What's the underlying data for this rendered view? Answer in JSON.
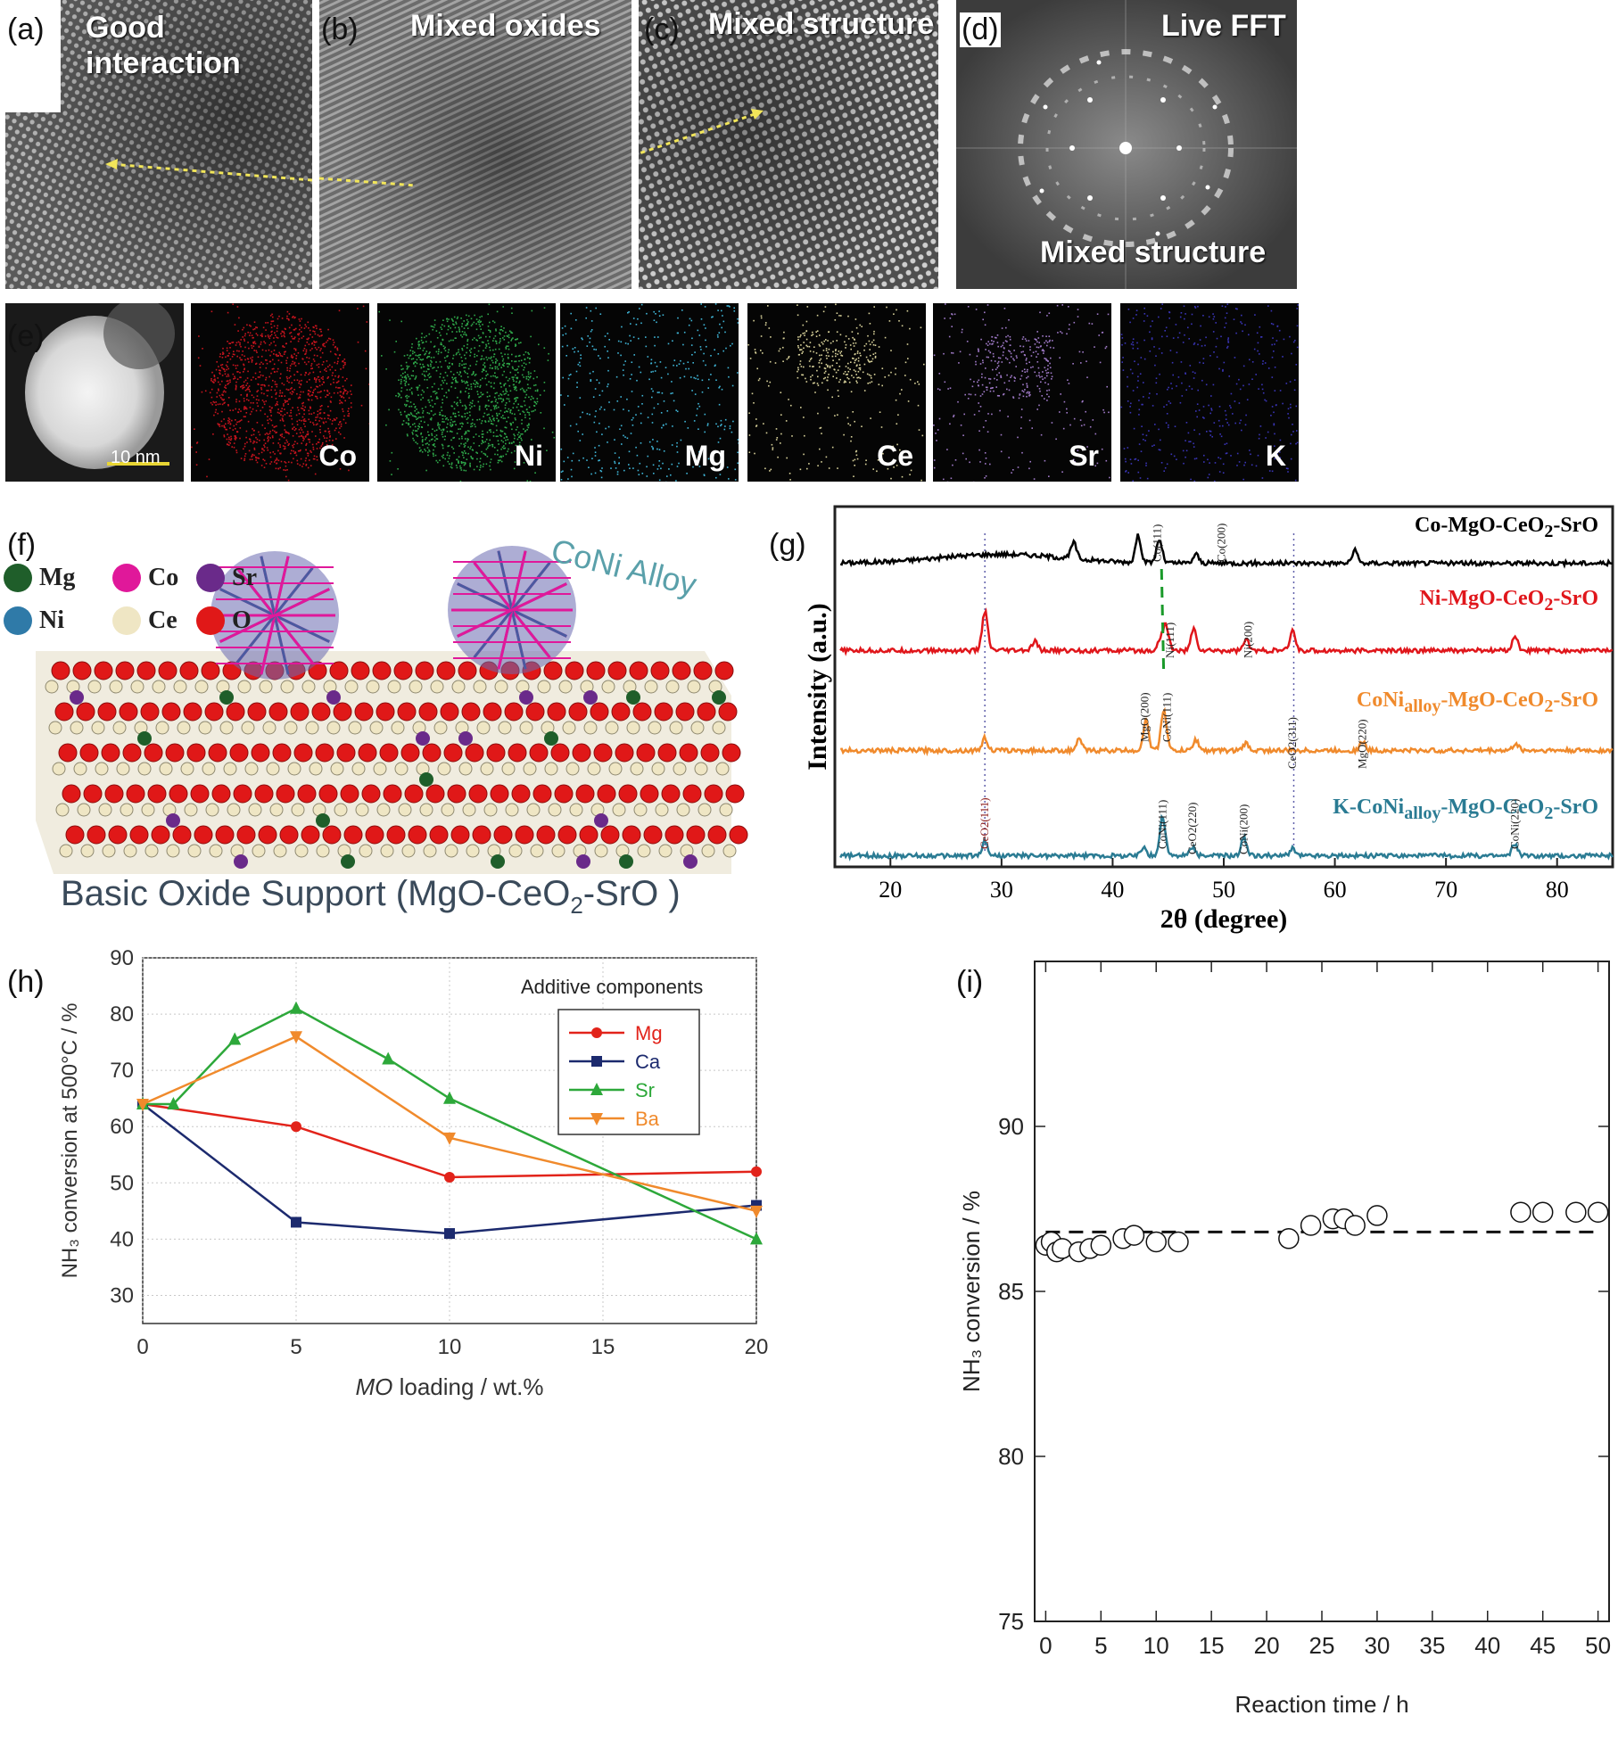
{
  "panel_labels": {
    "a": "(a)",
    "b": "(b)",
    "c": "(c)",
    "d": "(d)",
    "e": "(e)",
    "f": "(f)",
    "g": "(g)",
    "h": "(h)",
    "i": "(i)"
  },
  "tem": {
    "a_text_1": "Good",
    "a_text_2": "interaction",
    "b_text": "Mixed oxides",
    "c_text": "Mixed structure",
    "d_title": "Live FFT",
    "d_bottom": "Mixed structure"
  },
  "eds": {
    "scalebar": "10 nm",
    "maps": [
      {
        "element": "Co",
        "color": "#c8141e"
      },
      {
        "element": "Ni",
        "color": "#2fa84a"
      },
      {
        "element": "Mg",
        "color": "#3fb6d8"
      },
      {
        "element": "Ce",
        "color": "#d8d19a"
      },
      {
        "element": "Sr",
        "color": "#a07ac8"
      },
      {
        "element": "K",
        "color": "#3a35b8"
      }
    ]
  },
  "structure": {
    "legend": [
      {
        "symbol": "Mg",
        "color": "#1f5e2a"
      },
      {
        "symbol": "Co",
        "color": "#e0189a"
      },
      {
        "symbol": "Sr",
        "color": "#6a2a8a"
      },
      {
        "symbol": "Ni",
        "color": "#2f7aa8"
      },
      {
        "symbol": "Ce",
        "color": "#efe6c4"
      },
      {
        "symbol": "O",
        "color": "#e01818"
      }
    ],
    "alloy_label": "CoNi Alloy",
    "support_label_prefix": "Basic Oxide Support (MgO-CeO",
    "support_label_sub": "2",
    "support_label_suffix": "-SrO )"
  },
  "xrd": {
    "ylabel": "Intensity (a.u.)",
    "xlabel": "2θ (degree)",
    "xticks": [
      20,
      30,
      40,
      50,
      60,
      70,
      80
    ],
    "samples": [
      {
        "html": "Co-MgO-CeO<sub>2</sub>-SrO",
        "color": "#000000"
      },
      {
        "html": "Ni-MgO-CeO<sub>2</sub>-SrO",
        "color": "#e0161b"
      },
      {
        "html": "CoNi<sub>alloy</sub>-MgO-CeO<sub>2</sub>-SrO",
        "color": "#f08a2c"
      },
      {
        "html": "K-CoNi<sub>alloy</sub>-MgO-CeO<sub>2</sub>-SrO",
        "color": "#2a7b93"
      }
    ],
    "peak_labels": [
      "Co(111)",
      "Co(200)",
      "Ni(111)",
      "Ni(200)",
      "MgO(200)",
      "CoNi(111)",
      "CeO2(311)",
      "MgO(220)",
      "CeO2(111)",
      "CoNi(111)",
      "CeO2(220)",
      "CoNi(200)",
      "CoNi(220)"
    ]
  },
  "chart_data": [
    {
      "type": "line",
      "panel": "h",
      "xlabel_italic": "MO",
      "xlabel_rest": " loading / wt.%",
      "ylabel": "NH₃ conversion at 500°C / %",
      "legend_title": "Additive components",
      "xlim": [
        0,
        20
      ],
      "ylim": [
        25,
        90
      ],
      "xticks": [
        0,
        5,
        10,
        15,
        20
      ],
      "yticks": [
        30,
        40,
        50,
        60,
        70,
        80,
        90
      ],
      "series": [
        {
          "name": "Mg",
          "color": "#e2231a",
          "marker": "circle",
          "x": [
            0,
            5,
            10,
            20
          ],
          "y": [
            64,
            60,
            51,
            52
          ]
        },
        {
          "name": "Ca",
          "color": "#1c2a6e",
          "marker": "square",
          "x": [
            0,
            5,
            10,
            20
          ],
          "y": [
            64,
            43,
            41,
            46
          ]
        },
        {
          "name": "Sr",
          "color": "#2da83a",
          "marker": "triangle-up",
          "x": [
            0,
            1,
            3,
            5,
            8,
            10,
            20
          ],
          "y": [
            64,
            64,
            75.5,
            81,
            72,
            65,
            40
          ]
        },
        {
          "name": "Ba",
          "color": "#f08a2c",
          "marker": "triangle-down",
          "x": [
            0,
            5,
            10,
            20
          ],
          "y": [
            64,
            76,
            58,
            45
          ]
        }
      ]
    },
    {
      "type": "scatter",
      "panel": "i",
      "xlabel": "Reaction time / h",
      "ylabel": "NH₃ conversion / %",
      "xlim": [
        -1,
        51
      ],
      "ylim": [
        75,
        95
      ],
      "xticks": [
        0,
        5,
        10,
        15,
        20,
        25,
        30,
        35,
        40,
        45,
        50
      ],
      "yticks": [
        75,
        80,
        85,
        90
      ],
      "reference_line_y": 86.8,
      "points": {
        "x": [
          0,
          0.5,
          1,
          1.5,
          3,
          4,
          5,
          7,
          8,
          10,
          12,
          22,
          24,
          26,
          27,
          28,
          30,
          43,
          45,
          48,
          50
        ],
        "y": [
          86.4,
          86.5,
          86.2,
          86.3,
          86.2,
          86.3,
          86.4,
          86.6,
          86.7,
          86.5,
          86.5,
          86.6,
          87.0,
          87.2,
          87.2,
          87.0,
          87.3,
          87.4,
          87.4,
          87.4,
          87.4
        ]
      }
    }
  ]
}
